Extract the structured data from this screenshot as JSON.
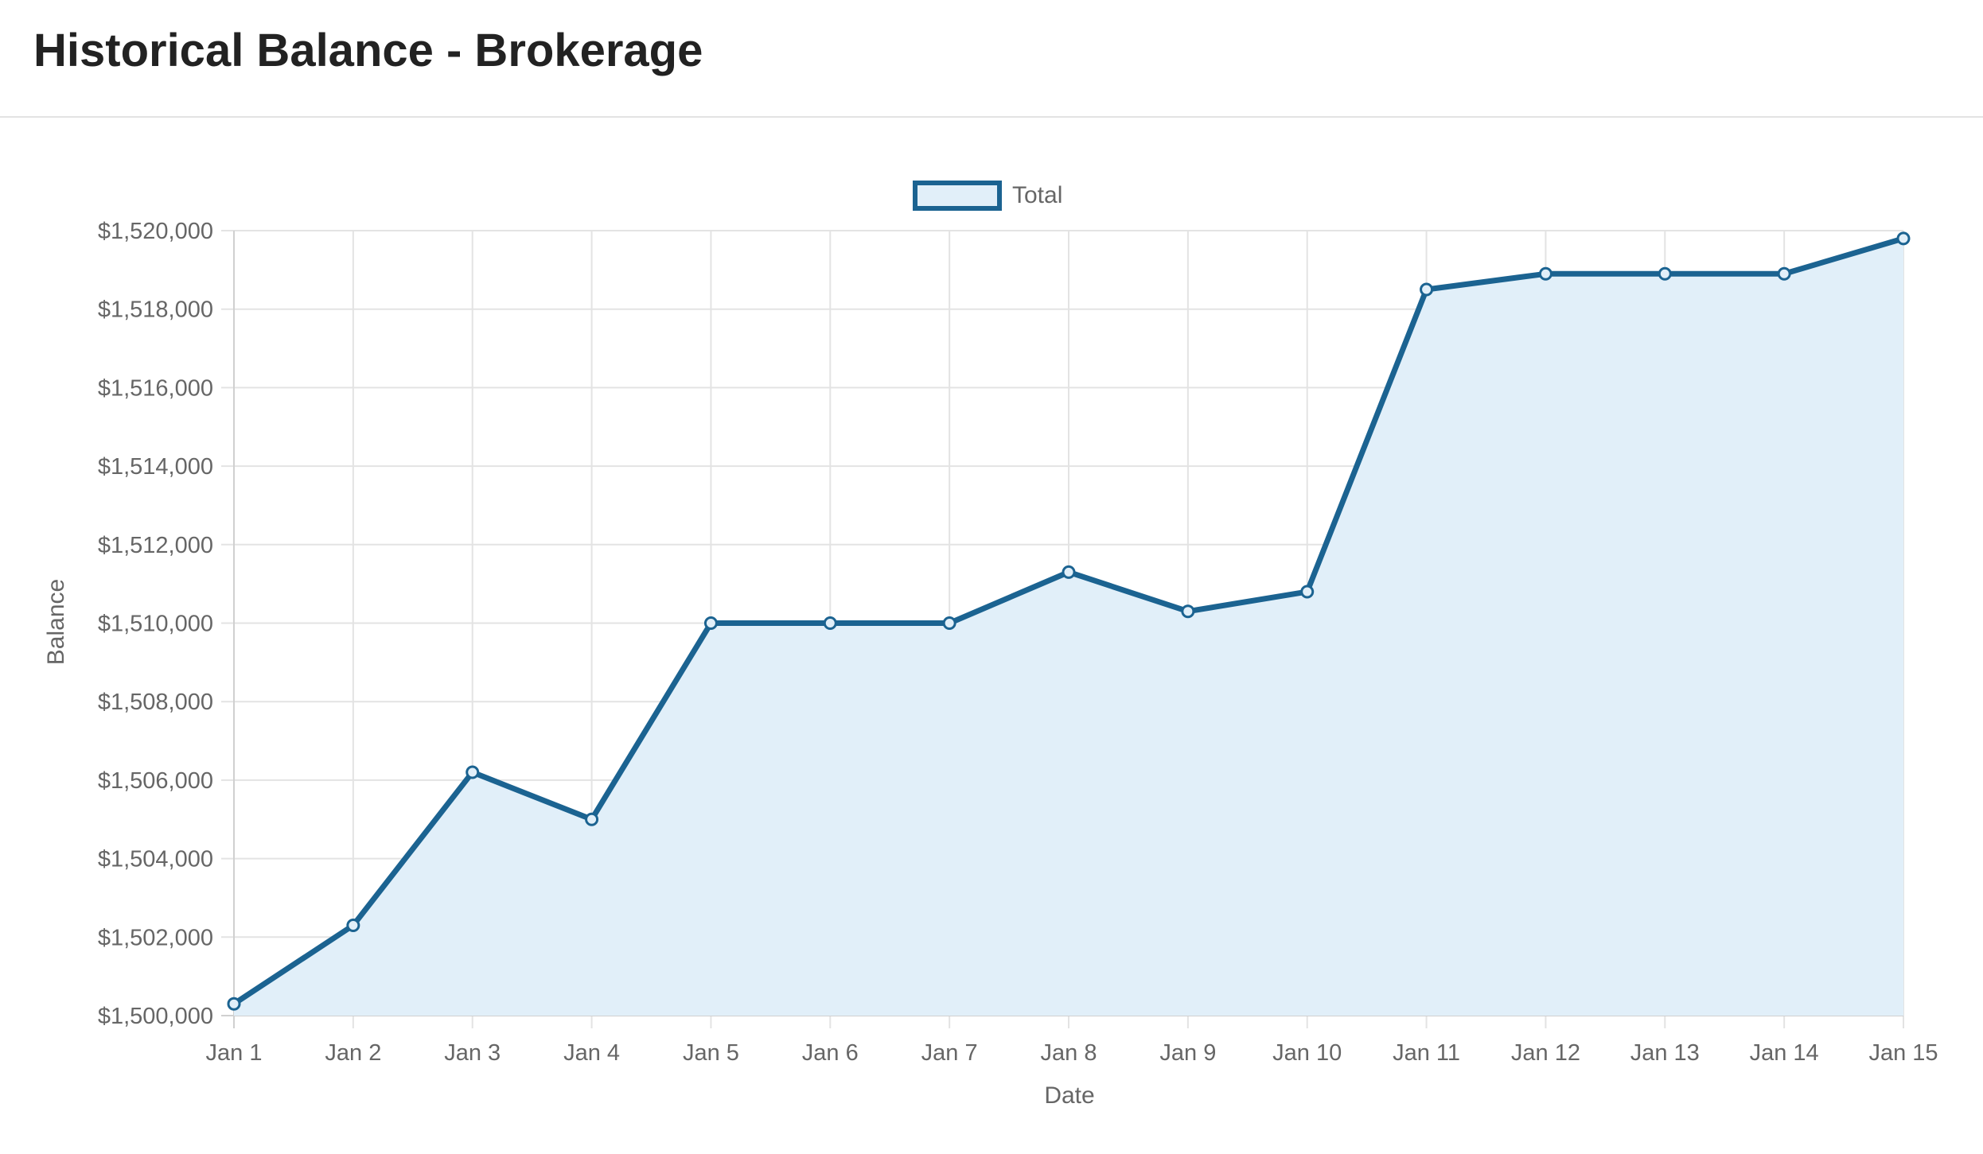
{
  "header": {
    "title": "Historical Balance - Brokerage"
  },
  "colors": {
    "line": "#1b6391",
    "fill": "#e1eff9",
    "grid": "#e3e3e3",
    "text": "#666666",
    "title": "#222222"
  },
  "chart_data": {
    "type": "area",
    "xlabel": "Date",
    "ylabel": "Balance",
    "legend_position": "top-center",
    "grid": true,
    "categories": [
      "Jan 1",
      "Jan 2",
      "Jan 3",
      "Jan 4",
      "Jan 5",
      "Jan 6",
      "Jan 7",
      "Jan 8",
      "Jan 9",
      "Jan 10",
      "Jan 11",
      "Jan 12",
      "Jan 13",
      "Jan 14",
      "Jan 15"
    ],
    "series": [
      {
        "name": "Total",
        "values": [
          1500300,
          1502300,
          1506200,
          1505000,
          1510000,
          1510000,
          1510000,
          1511300,
          1510300,
          1510800,
          1518500,
          1518900,
          1518900,
          1518900,
          1519800
        ]
      }
    ],
    "ylim": [
      1500000,
      1520000
    ],
    "yticks": [
      "$1,500,000",
      "$1,502,000",
      "$1,504,000",
      "$1,506,000",
      "$1,508,000",
      "$1,510,000",
      "$1,512,000",
      "$1,514,000",
      "$1,516,000",
      "$1,518,000",
      "$1,520,000"
    ]
  }
}
